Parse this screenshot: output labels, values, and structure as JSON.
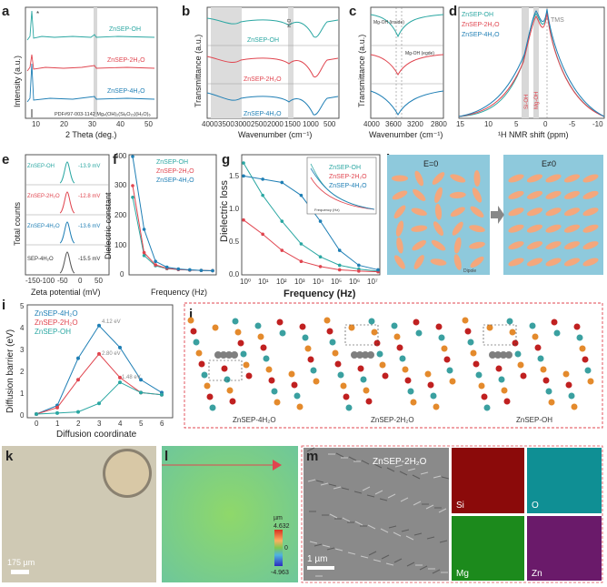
{
  "colors": {
    "oh": "#2aa7a2",
    "h2o2": "#e0454f",
    "h2o4": "#1f7fb5",
    "sep": "#555555",
    "gray": "#888888"
  },
  "labels": [
    "a",
    "b",
    "c",
    "d",
    "e",
    "f",
    "g",
    "h",
    "i",
    "j",
    "k",
    "l",
    "m"
  ],
  "panel_a": {
    "samples": [
      "ZnSEP-OH",
      "ZnSEP-2H₂O",
      "ZnSEP-4H₂O"
    ],
    "ylabel": "Intensity (a.u.)",
    "xlabel": "2 Theta (deg.)",
    "pdf": "PDF#97-003-1142   Mg₄(OH)₂(Si₆O₁₅)(H₂O)₆",
    "xticks": [
      "10",
      "20",
      "30",
      "40",
      "50"
    ],
    "star": "*"
  },
  "panel_b": {
    "samples": [
      "ZnSEP-OH",
      "ZnSEP-2H₂O",
      "ZnSEP-4H₂O"
    ],
    "ylabel": "Transmittance (a.u.)",
    "xlabel": "Wavenumber (cm⁻¹)",
    "band": "H₂O",
    "xticks": [
      "4000",
      "3500",
      "3000",
      "2500",
      "2000",
      "1500",
      "1000",
      "500"
    ]
  },
  "panel_c": {
    "ylabel": "Transmittance (a.u.)",
    "xlabel": "Wavenumber (cm⁻¹)",
    "mg_inside": "Mg-OH (inside)",
    "mg_edge": "Mg-OH (egde)",
    "xticks": [
      "4000",
      "3600",
      "3200",
      "2800"
    ]
  },
  "panel_d": {
    "samples": [
      "ZnSEP-OH",
      "ZnSEP-2H₂O",
      "ZnSEP-4H₂O"
    ],
    "xlabel": "¹H NMR shift (ppm)",
    "xticks": [
      "15",
      "10",
      "5",
      "0",
      "-5",
      "-10"
    ],
    "tms": "TMS",
    "sioh": "Si-OH",
    "mgoh": "Mg-OH"
  },
  "panel_e": {
    "rows": [
      {
        "name": "ZnSEP-OH",
        "mv": "-13.9 mV"
      },
      {
        "name": "ZnSEP-2H₂O",
        "mv": "-12.8 mV"
      },
      {
        "name": "ZnSEP-4H₂O",
        "mv": "-13.6 mV"
      },
      {
        "name": "SEP-4H₂O",
        "mv": "-15.5 mV"
      }
    ],
    "ylabel": "Total counts",
    "xlabel": "Zeta potential (mV)",
    "xticks": [
      "-150",
      "-100",
      "-50",
      "0",
      "50"
    ]
  },
  "panel_f": {
    "legend": [
      "ZnSEP-OH",
      "ZnSEP-2H₂O",
      "ZnSEP-4H₂O"
    ],
    "ylabel": "Dielectric constant",
    "xlabel": "Frequency (Hz)",
    "yticks": [
      "0",
      "100",
      "200",
      "300",
      "400"
    ],
    "xticks": [
      "10°",
      "10¹",
      "10²",
      "10³",
      "10⁴",
      "10⁵",
      "10⁶",
      "10⁷"
    ]
  },
  "panel_g": {
    "legend": [
      "ZnSEP-OH",
      "ZnSEP-2H₂O",
      "ZnSEP-4H₂O"
    ],
    "ylabel": "Dielectric loss",
    "xlabel": "Frequency (Hz)",
    "yticks": [
      "0.0",
      "0.5",
      "1.0",
      "1.5"
    ],
    "xticks": [
      "10⁰",
      "10¹",
      "10²",
      "10³",
      "10⁴",
      "10⁵",
      "10⁶",
      "10⁷"
    ],
    "inset_ylabel": "Dielectric loss",
    "inset_xlabel": "Frequency (Hz)"
  },
  "panel_h": {
    "left": "E=0",
    "right": "E≠0",
    "dipole": "Dipole"
  },
  "panel_i": {
    "ylabel": "Diffusion barrier (eV)",
    "xlabel": "Diffusion coordinate",
    "legend": [
      "ZnSEP-4H₂O",
      "ZnSEP-2H₂O",
      "ZnSEP-OH"
    ],
    "peak_labels": [
      "4.12 eV",
      "2.80 eV",
      "1.48 eV"
    ],
    "yticks": [
      "0",
      "1",
      "2",
      "3",
      "4",
      "5"
    ],
    "xticks": [
      "0",
      "1",
      "2",
      "3",
      "4",
      "5",
      "6"
    ]
  },
  "panel_j": {
    "captions": [
      "ZnSEP-4H₂O",
      "ZnSEP-2H₂O",
      "ZnSEP-OH"
    ]
  },
  "panel_k": {
    "scale": "175 µm"
  },
  "panel_l": {
    "unit": "µm",
    "max": "4.632",
    "zero": "0",
    "min": "-4.963"
  },
  "panel_m": {
    "title": "ZnSEP-2H₂O",
    "scale": "1 µm",
    "maps": [
      "Si",
      "O",
      "Mg",
      "Zn"
    ]
  },
  "chart_data": [
    {
      "type": "line",
      "panel": "f",
      "x": [
        1,
        10,
        100,
        1000,
        10000,
        100000,
        1000000,
        10000000
      ],
      "series": [
        {
          "name": "ZnSEP-OH",
          "values": [
            260,
            60,
            25,
            15,
            12,
            10,
            9,
            8
          ]
        },
        {
          "name": "ZnSEP-2H₂O",
          "values": [
            300,
            70,
            28,
            16,
            12,
            10,
            9,
            8
          ]
        },
        {
          "name": "ZnSEP-4H₂O",
          "values": [
            400,
            150,
            40,
            20,
            14,
            11,
            9,
            8
          ]
        }
      ],
      "ylim": [
        0,
        400
      ]
    },
    {
      "type": "line",
      "panel": "g",
      "x": [
        1,
        10,
        100,
        1000,
        10000,
        100000,
        1000000,
        10000000
      ],
      "series": [
        {
          "name": "ZnSEP-OH",
          "values": [
            1.7,
            1.2,
            0.8,
            0.45,
            0.25,
            0.12,
            0.06,
            0.03
          ]
        },
        {
          "name": "ZnSEP-2H₂O",
          "values": [
            0.82,
            0.6,
            0.35,
            0.18,
            0.1,
            0.05,
            0.03,
            0.02
          ]
        },
        {
          "name": "ZnSEP-4H₂O",
          "values": [
            1.5,
            1.45,
            1.4,
            1.2,
            0.8,
            0.35,
            0.12,
            0.05
          ]
        }
      ],
      "ylim": [
        0,
        1.8
      ]
    },
    {
      "type": "line",
      "panel": "i",
      "x": [
        0,
        1,
        2,
        3,
        4,
        5,
        6
      ],
      "series": [
        {
          "name": "ZnSEP-4H₂O",
          "values": [
            0,
            0.4,
            2.6,
            4.12,
            3.1,
            1.6,
            1.0
          ]
        },
        {
          "name": "ZnSEP-2H₂O",
          "values": [
            0,
            0.3,
            1.6,
            2.8,
            1.7,
            1.0,
            0.9
          ]
        },
        {
          "name": "ZnSEP-OH",
          "values": [
            0,
            0.05,
            0.1,
            0.5,
            1.48,
            1.0,
            0.9
          ]
        }
      ],
      "ylim": [
        0,
        5
      ]
    }
  ]
}
